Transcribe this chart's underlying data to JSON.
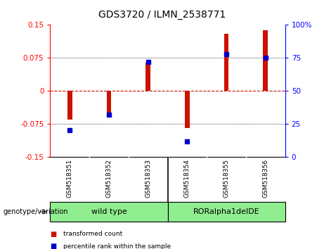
{
  "title": "GDS3720 / ILMN_2538771",
  "samples": [
    "GSM518351",
    "GSM518352",
    "GSM518353",
    "GSM518354",
    "GSM518355",
    "GSM518356"
  ],
  "transformed_count": [
    -0.065,
    -0.058,
    0.065,
    -0.085,
    0.13,
    0.138
  ],
  "percentile_rank_pct": [
    20,
    32,
    72,
    12,
    78,
    75
  ],
  "ylim_left": [
    -0.15,
    0.15
  ],
  "ylim_right": [
    0,
    100
  ],
  "yticks_left": [
    -0.15,
    -0.075,
    0,
    0.075,
    0.15
  ],
  "yticks_right": [
    0,
    25,
    50,
    75,
    100
  ],
  "bar_color": "#CC1100",
  "dot_color": "#0000CC",
  "zero_line_color": "#CC1100",
  "grid_color": "black",
  "label_transformed": "transformed count",
  "label_percentile": "percentile rank within the sample",
  "group_label": "genotype/variation",
  "background_plot": "#FFFFFF",
  "xlabels_bg": "#C0C0C0",
  "group1_name": "wild type",
  "group2_name": "RORalpha1delDE",
  "group_color": "#90EE90",
  "group_split": 2.5
}
